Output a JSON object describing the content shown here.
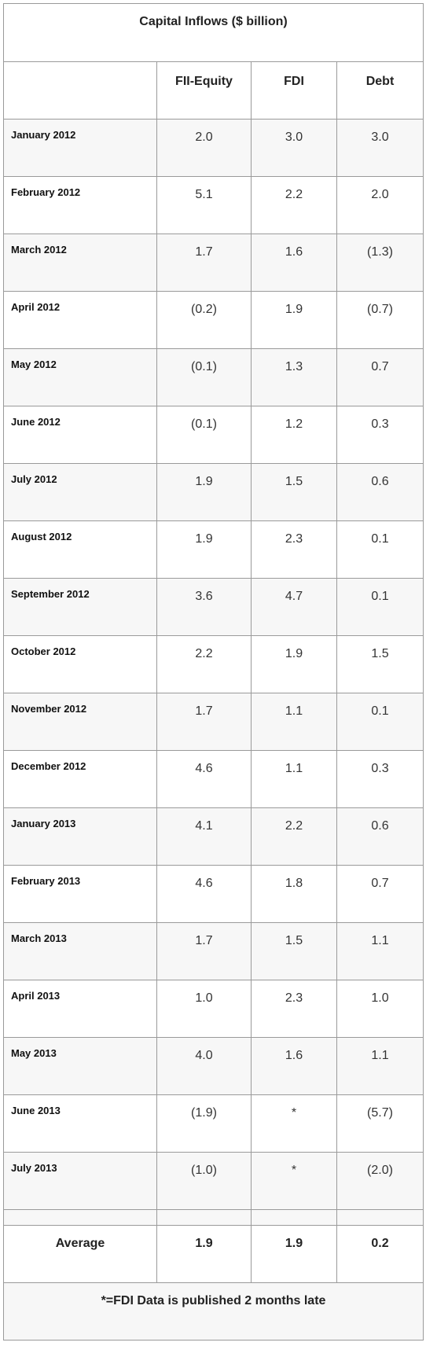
{
  "table": {
    "title": "Capital Inflows ($ billion)",
    "headers": [
      "",
      "FII-Equity",
      "FDI",
      "Debt"
    ],
    "rows": [
      {
        "month": "January 2012",
        "fii": "2.0",
        "fdi": "3.0",
        "debt": "3.0"
      },
      {
        "month": "February 2012",
        "fii": "5.1",
        "fdi": "2.2",
        "debt": "2.0"
      },
      {
        "month": "March 2012",
        "fii": "1.7",
        "fdi": "1.6",
        "debt": "(1.3)"
      },
      {
        "month": "April 2012",
        "fii": "(0.2)",
        "fdi": "1.9",
        "debt": "(0.7)"
      },
      {
        "month": "May 2012",
        "fii": "(0.1)",
        "fdi": "1.3",
        "debt": "0.7"
      },
      {
        "month": "June 2012",
        "fii": "(0.1)",
        "fdi": "1.2",
        "debt": "0.3"
      },
      {
        "month": "July 2012",
        "fii": "1.9",
        "fdi": "1.5",
        "debt": "0.6"
      },
      {
        "month": "August 2012",
        "fii": "1.9",
        "fdi": "2.3",
        "debt": "0.1"
      },
      {
        "month": "September 2012",
        "fii": "3.6",
        "fdi": "4.7",
        "debt": "0.1"
      },
      {
        "month": "October 2012",
        "fii": "2.2",
        "fdi": "1.9",
        "debt": "1.5"
      },
      {
        "month": "November 2012",
        "fii": "1.7",
        "fdi": "1.1",
        "debt": "0.1"
      },
      {
        "month": "December 2012",
        "fii": "4.6",
        "fdi": "1.1",
        "debt": "0.3"
      },
      {
        "month": "January 2013",
        "fii": "4.1",
        "fdi": "2.2",
        "debt": "0.6"
      },
      {
        "month": "February 2013",
        "fii": "4.6",
        "fdi": "1.8",
        "debt": "0.7"
      },
      {
        "month": "March 2013",
        "fii": "1.7",
        "fdi": "1.5",
        "debt": "1.1"
      },
      {
        "month": "April 2013",
        "fii": "1.0",
        "fdi": "2.3",
        "debt": "1.0"
      },
      {
        "month": "May 2013",
        "fii": "4.0",
        "fdi": "1.6",
        "debt": "1.1"
      },
      {
        "month": "June 2013",
        "fii": "(1.9)",
        "fdi": "*",
        "debt": "(5.7)"
      },
      {
        "month": "July 2013",
        "fii": "(1.0)",
        "fdi": "*",
        "debt": "(2.0)"
      }
    ],
    "average": {
      "label": "Average",
      "fii": "1.9",
      "fdi": "1.9",
      "debt": "0.2"
    },
    "footnote": "*=FDI Data is published 2 months late"
  }
}
